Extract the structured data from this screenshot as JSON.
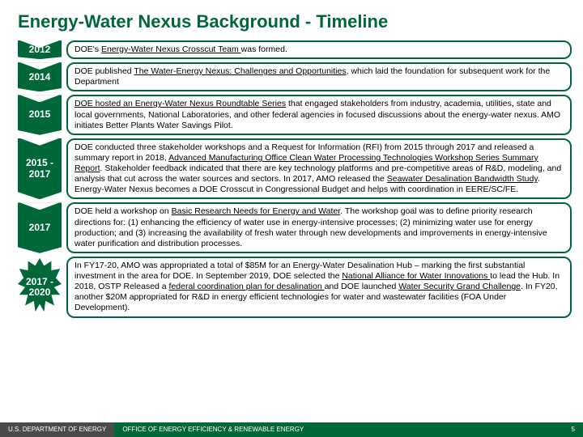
{
  "title": "Energy-Water Nexus Background - Timeline",
  "colors": {
    "accent": "#006838",
    "footer_dark": "#4a4a4a",
    "text": "#000000",
    "bg": "#ffffff"
  },
  "timeline": [
    {
      "year": "2012",
      "shape": "arrow",
      "text_parts": [
        {
          "t": "DOE's ",
          "u": false
        },
        {
          "t": "Energy-Water Nexus Crosscut Team ",
          "u": true
        },
        {
          "t": "was formed.",
          "u": false
        }
      ]
    },
    {
      "year": "2014",
      "shape": "arrow",
      "text_parts": [
        {
          "t": "DOE published ",
          "u": false
        },
        {
          "t": "The Water-Energy Nexus: Challenges and Opportunities",
          "u": true
        },
        {
          "t": ", which laid the foundation for subsequent work for the Department",
          "u": false
        }
      ]
    },
    {
      "year": "2015",
      "shape": "arrow",
      "text_parts": [
        {
          "t": "DOE hosted an Energy-Water Nexus Roundtable Series",
          "u": true
        },
        {
          "t": "  that engaged stakeholders from industry, academia, utilities, state and local governments, National Laboratories, and other federal agencies in focused discussions about the energy-water nexus. AMO initiates Better Plants Water Savings Pilot.",
          "u": false
        }
      ]
    },
    {
      "year": "2015 - 2017",
      "shape": "arrow",
      "text_parts": [
        {
          "t": "DOE conducted three stakeholder workshops and a Request for Information (RFI) from 2015 through 2017 and released a summary report in 2018, ",
          "u": false
        },
        {
          "t": "Advanced Manufacturing Office Clean Water Processing Technologies Workshop Series Summary Report",
          "u": true
        },
        {
          "t": ". Stakeholder feedback indicated that there are key technology platforms and pre-competitive areas of R&D, modeling, and analysis that cut across the water sources and sectors. In 2017, AMO released the ",
          "u": false
        },
        {
          "t": "Seawater Desalination Bandwidth Study",
          "u": true
        },
        {
          "t": ". Energy-Water Nexus becomes a DOE Crosscut in Congressional Budget and helps with coordination in EERE/SC/FE.",
          "u": false
        }
      ]
    },
    {
      "year": "2017",
      "shape": "arrow",
      "text_parts": [
        {
          "t": "DOE held a workshop on ",
          "u": false
        },
        {
          "t": "Basic Research Needs for Energy and Water",
          "u": true
        },
        {
          "t": ". The workshop goal was to define priority research directions for: (1) enhancing the efficiency of water use in energy-intensive processes; (2) minimizing water use for energy production; and (3) increasing the availability of fresh water through new developments and improvements in energy-intensive water purification and distribution processes.",
          "u": false
        }
      ]
    },
    {
      "year": "2017 - 2020",
      "shape": "starburst",
      "text_parts": [
        {
          "t": "In FY17-20, AMO was appropriated a total of $85M for an Energy-Water Desalination Hub – marking the first substantial investment in the area for DOE. In September 2019, DOE selected the ",
          "u": false
        },
        {
          "t": "National Alliance for Water Innovations ",
          "u": true
        },
        {
          "t": "to lead the Hub. In 2018, OSTP Released a ",
          "u": false
        },
        {
          "t": "federal coordination plan for desalination ",
          "u": true
        },
        {
          "t": "and DOE launched ",
          "u": false
        },
        {
          "t": "Water Security Grand Challenge",
          "u": true
        },
        {
          "t": ". In FY20, another $20M appropriated for R&D in energy efficient technologies for water and wastewater facilities (FOA Under Development).",
          "u": false
        }
      ]
    }
  ],
  "footer": {
    "left": "U.S. DEPARTMENT OF ENERGY",
    "right": "OFFICE OF ENERGY EFFICIENCY & RENEWABLE ENERGY",
    "page": "5"
  }
}
